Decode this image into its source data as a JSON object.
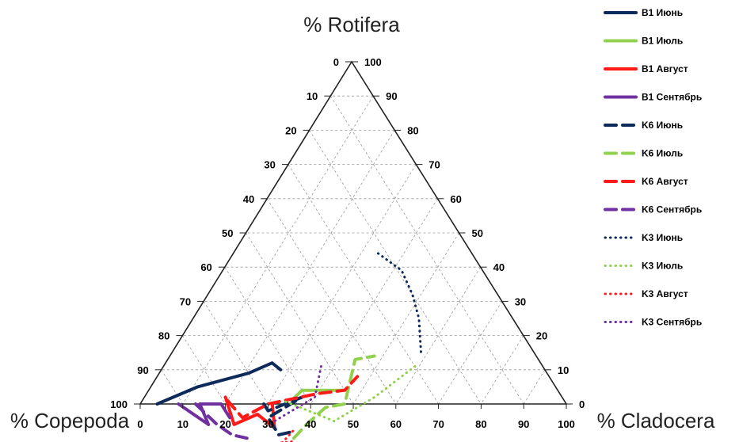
{
  "chart_data": {
    "type": "ternary-line",
    "axes": {
      "top": "% Rotifera",
      "left": "% Copepoda",
      "right": "% Cladocera"
    },
    "range": [
      0,
      100
    ],
    "ticks": [
      0,
      10,
      20,
      30,
      40,
      50,
      60,
      70,
      80,
      90,
      100
    ],
    "grid": true,
    "legend_position": "right",
    "series": [
      {
        "name": "B1 Июнь",
        "color": "#0d2a5a",
        "style": "solid",
        "points": [
          [
            96,
            4,
            0
          ],
          [
            84,
            11,
            5
          ],
          [
            70,
            21,
            9
          ],
          [
            63,
            25,
            12
          ],
          [
            62,
            28,
            10
          ]
        ]
      },
      {
        "name": "B1 Июль",
        "color": "#92d050",
        "style": "solid",
        "points": [
          [
            64,
            35,
            1
          ],
          [
            60,
            36,
            4
          ],
          [
            55,
            41,
            4
          ],
          [
            50,
            46,
            4
          ]
        ]
      },
      {
        "name": "B1 Август",
        "color": "#ff1a1a",
        "style": "solid",
        "points": [
          [
            79,
            19,
            2
          ],
          [
            81,
            25,
            -6
          ],
          [
            74,
            29,
            -3
          ],
          [
            72,
            35,
            -7
          ],
          [
            69,
            31,
            0
          ]
        ]
      },
      {
        "name": "B1 Сентябрь",
        "color": "#7030a0",
        "style": "solid",
        "points": [
          [
            91,
            9,
            0
          ],
          [
            87,
            19,
            -6
          ],
          [
            86,
            14,
            0
          ],
          [
            81,
            19,
            0
          ],
          [
            81,
            23,
            -4
          ]
        ]
      },
      {
        "name": "K6 Июнь",
        "color": "#0d2a5a",
        "style": "dashed",
        "points": [
          [
            71,
            29,
            0
          ],
          [
            71,
            31,
            -2
          ],
          [
            61,
            37,
            2
          ],
          [
            72,
            32,
            -4
          ],
          [
            72,
            37,
            -9
          ],
          [
            68,
            40,
            -8
          ]
        ]
      },
      {
        "name": "K6 Июль",
        "color": "#92d050",
        "style": "dashed",
        "points": [
          [
            69,
            41,
            -10
          ],
          [
            64,
            42,
            -6
          ],
          [
            57,
            44,
            -1
          ],
          [
            52,
            48,
            0
          ],
          [
            43,
            44,
            13
          ],
          [
            38,
            48,
            14
          ]
        ]
      },
      {
        "name": "K6 Август",
        "color": "#ff1a1a",
        "style": "dashed",
        "points": [
          [
            79,
            20,
            1
          ],
          [
            78,
            26,
            -4
          ],
          [
            70,
            30,
            0
          ],
          [
            57,
            40,
            3
          ],
          [
            50,
            46,
            4
          ],
          [
            45,
            47,
            8
          ]
        ]
      },
      {
        "name": "K6 Сентябрь",
        "color": "#7030a0",
        "style": "dashed",
        "points": [
          [
            87,
            13,
            0
          ],
          [
            85,
            21,
            -6
          ],
          [
            83,
            26,
            -9
          ],
          [
            80,
            30,
            -10
          ]
        ]
      },
      {
        "name": "K3 Июнь",
        "color": "#0d2a5a",
        "style": "dotted",
        "points": [
          [
            22,
            34,
            44
          ],
          [
            19,
            42,
            39
          ],
          [
            20,
            48,
            32
          ],
          [
            22,
            53,
            25
          ],
          [
            27,
            59,
            14
          ]
        ]
      },
      {
        "name": "K3 Июль",
        "color": "#92d050",
        "style": "dotted",
        "points": [
          [
            30,
            59,
            11
          ],
          [
            44,
            54,
            2
          ],
          [
            57,
            48,
            -5
          ],
          [
            66,
            33,
            1
          ]
        ]
      },
      {
        "name": "K3 Август",
        "color": "#ff1a1a",
        "style": "dotted",
        "points": [
          [
            70,
            41,
            -11
          ],
          [
            77,
            35,
            -12
          ],
          [
            79,
            34,
            -13
          ],
          [
            77,
            38,
            -15
          ],
          [
            72,
            39,
            -11
          ],
          [
            67,
            40,
            -7
          ]
        ]
      },
      {
        "name": "K3 Сентябрь",
        "color": "#7030a0",
        "style": "dotted",
        "points": [
          [
            52,
            37,
            11
          ],
          [
            58,
            40,
            2
          ],
          [
            71,
            34,
            -5
          ]
        ]
      }
    ]
  }
}
